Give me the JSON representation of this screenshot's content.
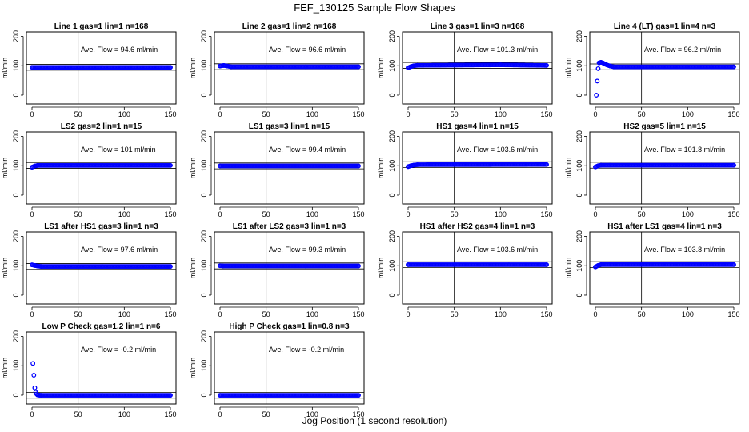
{
  "title": "FEF_130125  Sample Flow Shapes",
  "xlabel": "Jog Position (1 second resolution)",
  "colors": {
    "points": "#0000ff",
    "axis": "#000000"
  },
  "chart_data": [
    {
      "type": "scatter",
      "title": "Line 1 gas=1 lin=1 n=168",
      "ylabel": "ml/min",
      "annotation": "Ave. Flow =  94.6  ml/min",
      "xlim": [
        0,
        150
      ],
      "ylim": [
        -30,
        215
      ],
      "xticks": [
        0,
        50,
        100,
        150
      ],
      "yticks": [
        0,
        100,
        200
      ],
      "vline": 50,
      "hlines": [
        84.6,
        104.6
      ],
      "series": [
        {
          "x": [
            0,
            150
          ],
          "y": [
            94.6,
            94.6
          ]
        }
      ]
    },
    {
      "type": "scatter",
      "title": "Line 2 gas=1 lin=2 n=168",
      "ylabel": "ml/min",
      "annotation": "Ave. Flow =  96.6  ml/min",
      "xlim": [
        0,
        150
      ],
      "ylim": [
        -30,
        215
      ],
      "xticks": [
        0,
        50,
        100,
        150
      ],
      "yticks": [
        0,
        100,
        200
      ],
      "vline": 50,
      "hlines": [
        86.6,
        106.6
      ],
      "series": [
        {
          "x": [
            0,
            4,
            8,
            12,
            150
          ],
          "y": [
            99,
            101,
            99,
            96.6,
            96.6
          ]
        }
      ]
    },
    {
      "type": "scatter",
      "title": "Line 3 gas=1 lin=3 n=168",
      "ylabel": "ml/min",
      "annotation": "Ave. Flow =  101.3  ml/min",
      "xlim": [
        0,
        150
      ],
      "ylim": [
        -30,
        215
      ],
      "xticks": [
        0,
        50,
        100,
        150
      ],
      "yticks": [
        0,
        100,
        200
      ],
      "vline": 50,
      "hlines": [
        91.3,
        111.3
      ],
      "series": [
        {
          "x": [
            0,
            3,
            6,
            10,
            100,
            150
          ],
          "y": [
            93,
            97,
            100,
            101.3,
            103,
            101
          ]
        }
      ]
    },
    {
      "type": "scatter",
      "title": "Line 4 (LT) gas=1 lin=4 n=3",
      "ylabel": "ml/min",
      "annotation": "Ave. Flow =  96.2  ml/min",
      "xlim": [
        0,
        150
      ],
      "ylim": [
        -30,
        215
      ],
      "xticks": [
        0,
        50,
        100,
        150
      ],
      "yticks": [
        0,
        100,
        200
      ],
      "vline": 50,
      "hlines": [
        86.2,
        106.2
      ],
      "series": [
        {
          "x": [
            1,
            2,
            3,
            4,
            6,
            8,
            10,
            13,
            16,
            20,
            150
          ],
          "y": [
            0,
            48,
            90,
            110,
            112,
            110,
            106,
            102,
            99,
            96.2,
            96.2
          ]
        }
      ]
    },
    {
      "type": "scatter",
      "title": "LS2 gas=2 lin=1 n=15",
      "ylabel": "ml/min",
      "annotation": "Ave. Flow =  101  ml/min",
      "xlim": [
        0,
        150
      ],
      "ylim": [
        -30,
        215
      ],
      "xticks": [
        0,
        50,
        100,
        150
      ],
      "yticks": [
        0,
        100,
        200
      ],
      "vline": 50,
      "hlines": [
        91,
        111
      ],
      "series": [
        {
          "x": [
            0,
            3,
            6,
            150
          ],
          "y": [
            95,
            99,
            101,
            101
          ]
        }
      ]
    },
    {
      "type": "scatter",
      "title": "LS1 gas=3 lin=1 n=15",
      "ylabel": "ml/min",
      "annotation": "Ave. Flow =  99.4  ml/min",
      "xlim": [
        0,
        150
      ],
      "ylim": [
        -30,
        215
      ],
      "xticks": [
        0,
        50,
        100,
        150
      ],
      "yticks": [
        0,
        100,
        200
      ],
      "vline": 50,
      "hlines": [
        89.4,
        109.4
      ],
      "series": [
        {
          "x": [
            0,
            150
          ],
          "y": [
            99.4,
            99.4
          ]
        }
      ]
    },
    {
      "type": "scatter",
      "title": "HS1 gas=4 lin=1 n=15",
      "ylabel": "ml/min",
      "annotation": "Ave. Flow =  103.6  ml/min",
      "xlim": [
        0,
        150
      ],
      "ylim": [
        -30,
        215
      ],
      "xticks": [
        0,
        50,
        100,
        150
      ],
      "yticks": [
        0,
        100,
        200
      ],
      "vline": 50,
      "hlines": [
        93.6,
        113.6
      ],
      "series": [
        {
          "x": [
            0,
            3,
            6,
            10,
            150
          ],
          "y": [
            97,
            100,
            102,
            103.6,
            104
          ]
        }
      ]
    },
    {
      "type": "scatter",
      "title": "HS2 gas=5 lin=1 n=15",
      "ylabel": "ml/min",
      "annotation": "Ave. Flow =  101.8  ml/min",
      "xlim": [
        0,
        150
      ],
      "ylim": [
        -30,
        215
      ],
      "xticks": [
        0,
        50,
        100,
        150
      ],
      "yticks": [
        0,
        100,
        200
      ],
      "vline": 50,
      "hlines": [
        91.8,
        111.8
      ],
      "series": [
        {
          "x": [
            0,
            3,
            6,
            150
          ],
          "y": [
            96,
            100,
            101.8,
            101.8
          ]
        }
      ]
    },
    {
      "type": "scatter",
      "title": "LS1 after HS1 gas=3 lin=1 n=3",
      "ylabel": "ml/min",
      "annotation": "Ave. Flow =  97.6  ml/min",
      "xlim": [
        0,
        150
      ],
      "ylim": [
        -30,
        215
      ],
      "xticks": [
        0,
        50,
        100,
        150
      ],
      "yticks": [
        0,
        100,
        200
      ],
      "vline": 50,
      "hlines": [
        87.6,
        107.6
      ],
      "series": [
        {
          "x": [
            0,
            3,
            6,
            10,
            150
          ],
          "y": [
            103,
            101,
            99,
            97.6,
            97.6
          ]
        }
      ]
    },
    {
      "type": "scatter",
      "title": "LS1 after LS2 gas=3 lin=1 n=3",
      "ylabel": "ml/min",
      "annotation": "Ave. Flow =  99.3  ml/min",
      "xlim": [
        0,
        150
      ],
      "ylim": [
        -30,
        215
      ],
      "xticks": [
        0,
        50,
        100,
        150
      ],
      "yticks": [
        0,
        100,
        200
      ],
      "vline": 50,
      "hlines": [
        89.3,
        109.3
      ],
      "series": [
        {
          "x": [
            0,
            3,
            150
          ],
          "y": [
            100,
            99.3,
            99.3
          ]
        }
      ]
    },
    {
      "type": "scatter",
      "title": "HS1 after HS2 gas=4 lin=1 n=3",
      "ylabel": "ml/min",
      "annotation": "Ave. Flow =  103.6  ml/min",
      "xlim": [
        0,
        150
      ],
      "ylim": [
        -30,
        215
      ],
      "xticks": [
        0,
        50,
        100,
        150
      ],
      "yticks": [
        0,
        100,
        200
      ],
      "vline": 50,
      "hlines": [
        93.6,
        113.6
      ],
      "series": [
        {
          "x": [
            0,
            150
          ],
          "y": [
            103.6,
            103.6
          ]
        }
      ]
    },
    {
      "type": "scatter",
      "title": "HS1 after LS1 gas=4 lin=1 n=3",
      "ylabel": "ml/min",
      "annotation": "Ave. Flow =  103.8  ml/min",
      "xlim": [
        0,
        150
      ],
      "ylim": [
        -30,
        215
      ],
      "xticks": [
        0,
        50,
        100,
        150
      ],
      "yticks": [
        0,
        100,
        200
      ],
      "vline": 50,
      "hlines": [
        93.8,
        113.8
      ],
      "series": [
        {
          "x": [
            0,
            3,
            6,
            150
          ],
          "y": [
            96,
            101,
            103.8,
            103.8
          ]
        }
      ]
    },
    {
      "type": "scatter",
      "title": "Low P Check gas=1.2 lin=1 n=6",
      "ylabel": "ml/min",
      "annotation": "Ave. Flow =  -0.2  ml/min",
      "xlim": [
        0,
        150
      ],
      "ylim": [
        -30,
        215
      ],
      "xticks": [
        0,
        50,
        100,
        150
      ],
      "yticks": [
        0,
        100,
        200
      ],
      "vline": 50,
      "hlines": [
        -10.2,
        9.8
      ],
      "series": [
        {
          "x": [
            1,
            2,
            3,
            4,
            5,
            6,
            8,
            10,
            150
          ],
          "y": [
            108,
            68,
            25,
            10,
            4,
            1,
            0,
            -0.2,
            -0.2
          ]
        }
      ]
    },
    {
      "type": "scatter",
      "title": "High P Check gas=1 lin=0.8 n=3",
      "ylabel": "ml/min",
      "annotation": "Ave. Flow =  -0.2  ml/min",
      "xlim": [
        0,
        150
      ],
      "ylim": [
        -30,
        215
      ],
      "xticks": [
        0,
        50,
        100,
        150
      ],
      "yticks": [
        0,
        100,
        200
      ],
      "vline": 50,
      "hlines": [
        -10.2,
        9.8
      ],
      "series": [
        {
          "x": [
            0,
            150
          ],
          "y": [
            -0.2,
            -0.2
          ]
        }
      ]
    }
  ]
}
